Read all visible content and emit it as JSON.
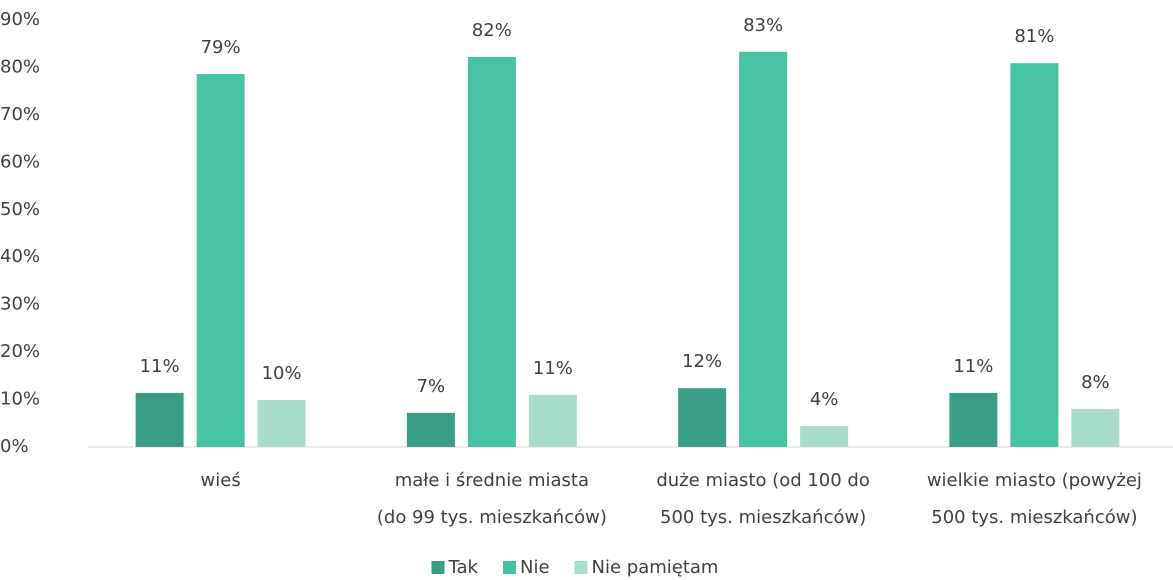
{
  "chart_data": {
    "type": "bar",
    "categories": [
      "wieś",
      "małe i średnie miasta\n(do 99 tys. mieszkańców)",
      "duże miasto (od 100 do\n500 tys. mieszkańców)",
      "wielkie miasto (powyżej\n500 tys. mieszkańców)"
    ],
    "series": [
      {
        "name": "Tak",
        "color": "#3a9e86",
        "values": [
          11.4,
          7.2,
          12.4,
          11.4
        ],
        "value_labels": [
          "11%",
          "7%",
          "12%",
          "11%"
        ]
      },
      {
        "name": "Nie",
        "color": "#45c3a2",
        "values": [
          78.6,
          82.2,
          83.3,
          80.9
        ],
        "value_labels": [
          "79%",
          "82%",
          "83%",
          "81%"
        ]
      },
      {
        "name": "Nie pamiętam",
        "color": "#a8dccb",
        "values": [
          9.9,
          11.0,
          4.4,
          8.0
        ],
        "value_labels": [
          "10%",
          "11%",
          "4%",
          "8%"
        ]
      }
    ],
    "ylim": [
      0,
      90
    ],
    "yticks": [
      {
        "value": 0,
        "label": "0%"
      },
      {
        "value": 10,
        "label": "10%"
      },
      {
        "value": 20,
        "label": "20%"
      },
      {
        "value": 30,
        "label": "30%"
      },
      {
        "value": 40,
        "label": "40%"
      },
      {
        "value": 50,
        "label": "50%"
      },
      {
        "value": 60,
        "label": "60%"
      },
      {
        "value": 70,
        "label": "70%"
      },
      {
        "value": 80,
        "label": "80%"
      },
      {
        "value": 90,
        "label": "90%"
      }
    ],
    "legend": "bottom"
  }
}
